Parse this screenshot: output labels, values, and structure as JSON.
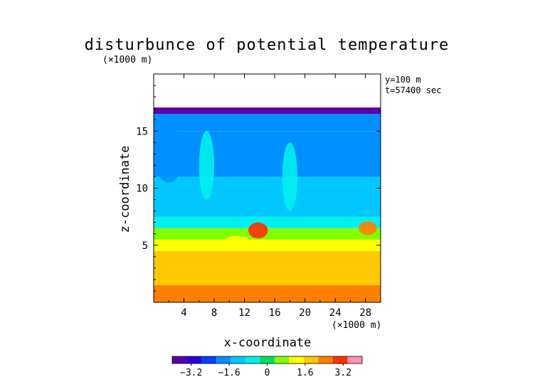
{
  "chart_data": {
    "type": "heatmap",
    "title": "disturbunce of potential temperature",
    "z_units": "(×1000 m)",
    "x_units": "(×1000 m)",
    "xlabel": "x-coordinate",
    "ylabel": "z-coordinate",
    "xlim": [
      0,
      30
    ],
    "ylim": [
      0,
      20
    ],
    "x_ticks": [
      "4",
      "8",
      "12",
      "16",
      "20",
      "24",
      "28"
    ],
    "y_ticks": [
      "5",
      "10",
      "15"
    ],
    "info": [
      "y=100 m",
      "t=57400 sec"
    ],
    "data_top": 17,
    "colorbar": {
      "min": -4,
      "max": 4,
      "tick_labels": [
        "−3.2",
        "−1.6",
        "0",
        "1.6",
        "3.2"
      ],
      "colors": [
        "#5a00a8",
        "#2a00e0",
        "#0040ff",
        "#0090ff",
        "#00c8ff",
        "#00f0f0",
        "#00e060",
        "#80ff00",
        "#ffff00",
        "#ffc800",
        "#ff8000",
        "#ff3000",
        "#ff90b0"
      ]
    },
    "bands": [
      {
        "z_from": 0.0,
        "z_to": 1.5,
        "value": 2.2
      },
      {
        "z_from": 1.5,
        "z_to": 3.0,
        "value": 2.0
      },
      {
        "z_from": 3.0,
        "z_to": 4.5,
        "value": 1.7
      },
      {
        "z_from": 4.5,
        "z_to": 5.5,
        "value": 1.4
      },
      {
        "z_from": 5.5,
        "z_to": 6.5,
        "value": 0.6
      },
      {
        "z_from": 6.5,
        "z_to": 7.5,
        "value": -0.6
      },
      {
        "z_from": 7.5,
        "z_to": 11.0,
        "value": -1.3
      },
      {
        "z_from": 11.0,
        "z_to": 15.0,
        "value": -1.6
      },
      {
        "z_from": 15.0,
        "z_to": 16.5,
        "value": -2.1
      },
      {
        "z_from": 16.5,
        "z_to": 17.0,
        "value": -3.4
      }
    ],
    "anomalies": [
      {
        "x": 13.8,
        "z": 6.3,
        "rx": 1.3,
        "rz": 0.7,
        "value": 2.8
      },
      {
        "x": 28.3,
        "z": 6.5,
        "rx": 1.2,
        "rz": 0.6,
        "value": 2.6
      },
      {
        "x": 11.0,
        "z": 5.2,
        "rx": 2.0,
        "rz": 0.6,
        "value": 1.1
      },
      {
        "x": 2.0,
        "z": 13.0,
        "rx": 2.0,
        "rz": 2.5,
        "value": -2.0
      },
      {
        "x": 7.0,
        "z": 12.0,
        "rx": 1.0,
        "rz": 3.0,
        "value": -0.9
      },
      {
        "x": 18.0,
        "z": 11.0,
        "rx": 1.0,
        "rz": 3.0,
        "value": -0.9
      }
    ]
  }
}
